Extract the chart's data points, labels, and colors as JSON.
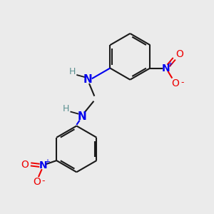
{
  "background_color": "#ebebeb",
  "bond_color": "#1a1a1a",
  "nitrogen_color": "#0000ee",
  "oxygen_color": "#ee0000",
  "h_color": "#5a9090",
  "n_label": "N",
  "h_label": "H",
  "o_label": "O",
  "plus_label": "+",
  "minus_label": "-",
  "figsize": [
    3.0,
    3.0
  ],
  "dpi": 100
}
